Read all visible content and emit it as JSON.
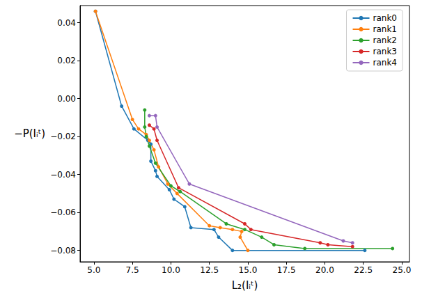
{
  "chart_data": {
    "type": "line",
    "x_label": "L₂(Iᵢᵗ)",
    "y_label": "−P(Iᵢᵗ)",
    "xlim": [
      4.1,
      25.5
    ],
    "ylim": [
      -0.086,
      0.049
    ],
    "xticks": [
      {
        "value": 5,
        "label": "5.0"
      },
      {
        "value": 7.5,
        "label": "7.5"
      },
      {
        "value": 10,
        "label": "10.0"
      },
      {
        "value": 12.5,
        "label": "12.5"
      },
      {
        "value": 15,
        "label": "15.0"
      },
      {
        "value": 17.5,
        "label": "17.5"
      },
      {
        "value": 20,
        "label": "20.0"
      },
      {
        "value": 22.5,
        "label": "22.5"
      },
      {
        "value": 25,
        "label": "25.0"
      }
    ],
    "yticks": [
      {
        "value": 0.04,
        "label": "0.04"
      },
      {
        "value": 0.02,
        "label": "0.02"
      },
      {
        "value": 0,
        "label": "0.00"
      },
      {
        "value": -0.02,
        "label": "−0.02"
      },
      {
        "value": -0.04,
        "label": "−0.04"
      },
      {
        "value": -0.06,
        "label": "−0.06"
      },
      {
        "value": -0.08,
        "label": "−0.08"
      }
    ],
    "grid": false,
    "legend": "upper right",
    "marker": "circle",
    "line_style": "solid",
    "series": [
      {
        "name": "rank0",
        "color": "#1f77b4",
        "x": [
          5.1,
          6.8,
          7.6,
          8.5,
          8.7,
          8.7,
          9.0,
          9.1,
          9.9,
          10.2,
          10.9,
          11.3,
          12.8,
          13.1,
          14.0,
          22.6
        ],
        "values": [
          0.046,
          -0.004,
          -0.016,
          -0.022,
          -0.024,
          -0.033,
          -0.038,
          -0.041,
          -0.048,
          -0.053,
          -0.057,
          -0.068,
          -0.069,
          -0.073,
          -0.08,
          -0.08
        ]
      },
      {
        "name": "rank1",
        "color": "#ff7f0e",
        "x": [
          5.1,
          7.5,
          7.9,
          8.4,
          8.6,
          8.9,
          9.2,
          9.8,
          10.4,
          12.5,
          13.2,
          14.0,
          14.6,
          14.5,
          15.0
        ],
        "values": [
          0.046,
          -0.011,
          -0.016,
          -0.019,
          -0.022,
          -0.027,
          -0.036,
          -0.045,
          -0.05,
          -0.067,
          -0.068,
          -0.069,
          -0.07,
          -0.073,
          -0.08
        ]
      },
      {
        "name": "rank2",
        "color": "#2ca02c",
        "x": [
          8.3,
          8.3,
          8.4,
          8.6,
          9.0,
          10.0,
          10.6,
          13.6,
          14.8,
          15.9,
          16.7,
          18.7,
          24.4
        ],
        "values": [
          -0.006,
          -0.015,
          -0.02,
          -0.025,
          -0.034,
          -0.046,
          -0.049,
          -0.066,
          -0.069,
          -0.073,
          -0.077,
          -0.079,
          -0.079
        ]
      },
      {
        "name": "rank3",
        "color": "#d62728",
        "x": [
          8.6,
          8.9,
          9.1,
          10.5,
          14.8,
          15.2,
          19.7,
          20.2,
          21.8
        ],
        "values": [
          -0.014,
          -0.016,
          -0.022,
          -0.047,
          -0.066,
          -0.069,
          -0.076,
          -0.077,
          -0.078
        ]
      },
      {
        "name": "rank4",
        "color": "#9467bd",
        "x": [
          8.6,
          9.0,
          9.1,
          11.2,
          21.2,
          21.8
        ],
        "values": [
          -0.009,
          -0.009,
          -0.015,
          -0.045,
          -0.075,
          -0.076
        ]
      }
    ]
  }
}
